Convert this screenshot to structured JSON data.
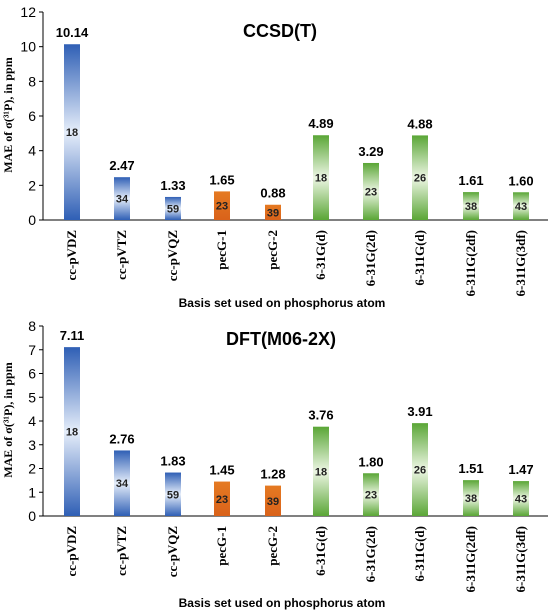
{
  "chart_data": [
    {
      "type": "bar",
      "title": "CCSD(T)",
      "xlabel": "Basis set used on phosphorus atom",
      "ylabel": "MAE of σ(³¹P), in ppm",
      "ylim": [
        0,
        12
      ],
      "yticks": [
        0,
        2,
        4,
        6,
        8,
        10,
        12
      ],
      "grid": false,
      "categories": [
        "cc-pVDZ",
        "cc-pVTZ",
        "cc-pVQZ",
        "pecG-1",
        "pecG-2",
        "6-31G(d)",
        "6-31G(2d)",
        "6-311G(d)",
        "6-311G(2df)",
        "6-311G(3df)"
      ],
      "values": [
        10.14,
        2.47,
        1.33,
        1.65,
        0.88,
        4.89,
        3.29,
        4.88,
        1.61,
        1.6
      ],
      "value_labels": [
        "10.14",
        "2.47",
        "1.33",
        "1.65",
        "0.88",
        "4.89",
        "3.29",
        "4.88",
        "1.61",
        "1.60"
      ],
      "inner_labels": [
        "18",
        "34",
        "59",
        "23",
        "39",
        "18",
        "23",
        "26",
        "38",
        "43"
      ],
      "bar_groups": [
        "blue",
        "blue",
        "blue",
        "orange",
        "orange",
        "green",
        "green",
        "green",
        "green",
        "green"
      ]
    },
    {
      "type": "bar",
      "title": "DFT(M06-2X)",
      "xlabel": "Basis set used on phosphorus atom",
      "ylabel": "MAE of σ(³¹P), in ppm",
      "ylim": [
        0,
        8
      ],
      "yticks": [
        0,
        1,
        2,
        3,
        4,
        5,
        6,
        7,
        8
      ],
      "grid": false,
      "categories": [
        "cc-pVDZ",
        "cc-pVTZ",
        "cc-pVQZ",
        "pecG-1",
        "pecG-2",
        "6-31G(d)",
        "6-31G(2d)",
        "6-311G(d)",
        "6-311G(2df)",
        "6-311G(3df)"
      ],
      "values": [
        7.11,
        2.76,
        1.83,
        1.45,
        1.28,
        3.76,
        1.8,
        3.91,
        1.51,
        1.47
      ],
      "value_labels": [
        "7.11",
        "2.76",
        "1.83",
        "1.45",
        "1.28",
        "3.76",
        "1.80",
        "3.91",
        "1.51",
        "1.47"
      ],
      "inner_labels": [
        "18",
        "34",
        "59",
        "23",
        "39",
        "18",
        "23",
        "26",
        "38",
        "43"
      ],
      "bar_groups": [
        "blue",
        "blue",
        "blue",
        "orange",
        "orange",
        "green",
        "green",
        "green",
        "green",
        "green"
      ]
    }
  ],
  "colors": {
    "blue": "#2e5fb8",
    "blue_light": "#e9f0fb",
    "orange": "#e2711d",
    "green": "#5ea83a",
    "green_light": "#eef7e6",
    "axis": "#000000",
    "text": "#000000"
  }
}
